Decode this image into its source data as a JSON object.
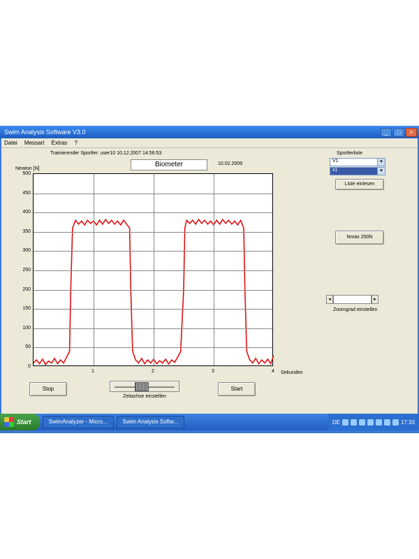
{
  "window": {
    "title": "Swim Analysis Software V3.0",
    "menubar": [
      "Datei",
      "Messart",
      "Extras",
      "?"
    ]
  },
  "header": {
    "training_line": "Trainierender Sportler:   user10 10.12.2007 14:56:53",
    "chart_title": "Biometer",
    "date": "10.02.2009"
  },
  "chart": {
    "yaxis_title": "Newton [N]",
    "xaxis_title": "Sekunden",
    "ylim": [
      0,
      500
    ],
    "ytick_step": 50,
    "xlim": [
      0,
      4
    ],
    "xtick_step": 1,
    "yticks": [
      0,
      50,
      100,
      150,
      200,
      250,
      300,
      350,
      400,
      450,
      500
    ],
    "xticks": [
      1,
      2,
      3,
      4
    ],
    "background_color": "#ffffff",
    "grid_color": "#888888",
    "line_color": "#e01010",
    "line_width": 1.6,
    "series": {
      "t": [
        0.0,
        0.05,
        0.1,
        0.15,
        0.2,
        0.25,
        0.3,
        0.35,
        0.4,
        0.45,
        0.5,
        0.55,
        0.6,
        0.62,
        0.65,
        0.7,
        0.75,
        0.8,
        0.85,
        0.9,
        0.95,
        1.0,
        1.05,
        1.1,
        1.15,
        1.2,
        1.25,
        1.3,
        1.35,
        1.4,
        1.45,
        1.5,
        1.55,
        1.6,
        1.62,
        1.65,
        1.7,
        1.75,
        1.8,
        1.85,
        1.9,
        1.95,
        2.0,
        2.05,
        2.1,
        2.15,
        2.2,
        2.25,
        2.3,
        2.35,
        2.4,
        2.45,
        2.5,
        2.52,
        2.55,
        2.6,
        2.65,
        2.7,
        2.75,
        2.8,
        2.85,
        2.9,
        2.95,
        3.0,
        3.05,
        3.1,
        3.15,
        3.2,
        3.25,
        3.3,
        3.35,
        3.4,
        3.45,
        3.5,
        3.52,
        3.55,
        3.6,
        3.65,
        3.7,
        3.75,
        3.8,
        3.85,
        3.9,
        3.95,
        4.0
      ],
      "y": [
        10,
        18,
        8,
        20,
        6,
        15,
        10,
        22,
        8,
        18,
        10,
        25,
        40,
        200,
        360,
        380,
        370,
        378,
        368,
        380,
        372,
        378,
        368,
        380,
        370,
        382,
        372,
        380,
        370,
        378,
        368,
        380,
        370,
        360,
        200,
        40,
        18,
        10,
        22,
        8,
        18,
        10,
        20,
        8,
        16,
        10,
        20,
        7,
        18,
        12,
        25,
        40,
        200,
        360,
        380,
        372,
        380,
        370,
        382,
        372,
        380,
        370,
        378,
        368,
        380,
        370,
        382,
        372,
        380,
        370,
        378,
        368,
        380,
        360,
        200,
        40,
        18,
        10,
        22,
        8,
        18,
        10,
        20,
        8,
        30
      ]
    }
  },
  "right_panel": {
    "list_label": "Sportlerliste",
    "select_top": "V1",
    "select_mid": "x1",
    "btn_load": "Liste einlesen",
    "btn_nmax": "Nmax 250N",
    "zoom_label": "Zoomgrad einstellen"
  },
  "bottom": {
    "stop": "Stop",
    "start": "Start",
    "slider_label": "Zeitachse einstellen"
  },
  "taskbar": {
    "start": "Start",
    "items": [
      "SwimAnalyzer - Micro...",
      "Swim Analysis Softw..."
    ],
    "lang": "DE",
    "clock": "17:33"
  }
}
